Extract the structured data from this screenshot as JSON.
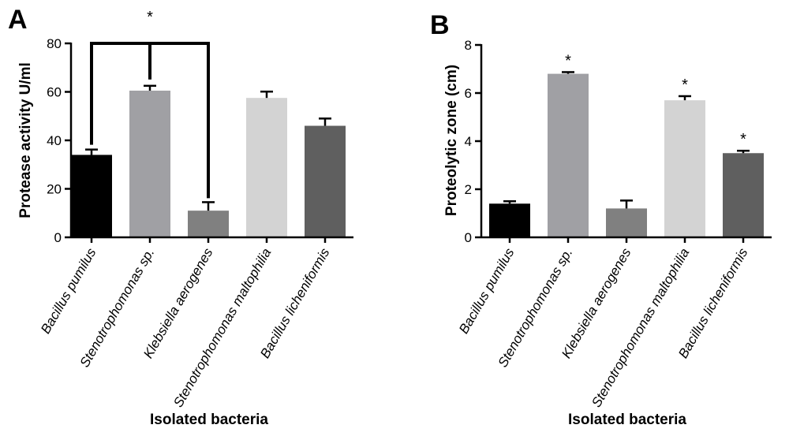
{
  "chart_data": [
    {
      "type": "bar",
      "panel_label": "A",
      "ylabel": "Protease activity U/ml",
      "xlabel": "Isolated bacteria",
      "ylim": [
        0,
        80
      ],
      "yticks": [
        "0",
        "20",
        "40",
        "60",
        "80"
      ],
      "categories": [
        "Bacillus pumilus",
        "Stenotrophomonas sp.",
        "Klebsiella aerogenes",
        "Stenotrophomonas maltophilia",
        "Bacillus licheniformis"
      ],
      "values": [
        34,
        60.5,
        11,
        57.5,
        46
      ],
      "errors": [
        2.2,
        2,
        3.5,
        2.6,
        3
      ],
      "colors": [
        "#000000",
        "#a0a0a4",
        "#808080",
        "#d3d3d3",
        "#5f5f5f"
      ],
      "significance": {
        "marker": "*",
        "bracket": "connects Bacillus pumilus, Stenotrophomonas sp. and Klebsiella aerogenes"
      }
    },
    {
      "type": "bar",
      "panel_label": "B",
      "ylabel": "Proteolytic zone (cm)",
      "xlabel": "Isolated bacteria",
      "ylim": [
        0,
        8
      ],
      "yticks": [
        "0",
        "2",
        "4",
        "6",
        "8"
      ],
      "categories": [
        "Bacillus pumilus",
        "Stenotrophomonas sp.",
        "Klebsiella aerogenes",
        "Stenotrophomonas maltophilia",
        "Bacillus licheniformis"
      ],
      "values": [
        1.4,
        6.8,
        1.2,
        5.7,
        3.5
      ],
      "errors": [
        0.1,
        0.07,
        0.33,
        0.17,
        0.1
      ],
      "colors": [
        "#000000",
        "#a0a0a4",
        "#808080",
        "#d3d3d3",
        "#5f5f5f"
      ],
      "significance": {
        "marker": "*",
        "marked_bars": [
          1,
          3,
          4
        ]
      }
    }
  ]
}
